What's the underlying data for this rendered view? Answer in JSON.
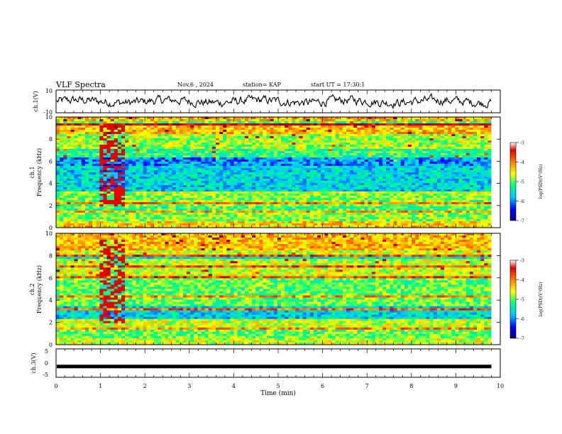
{
  "header": {
    "title": "VLF Spectra",
    "date": "Nov.6 , 2024",
    "station": "station= KAP",
    "start": "start UT = 17:30:1"
  },
  "chart_data": [
    {
      "panel": "ch1-waveform",
      "type": "line",
      "ylabel": "ch.1(V)",
      "ylim": [
        -10,
        10
      ],
      "yticks": [
        "10",
        "-10"
      ],
      "xlim": [
        0,
        10
      ],
      "x_end_min": 9.8,
      "approx_level_V": 0,
      "approx_amplitude_V": 4
    },
    {
      "panel": "ch1-spectrogram",
      "type": "heatmap",
      "ylabel": "ch.1 Frequency (kHz)",
      "ylim": [
        0,
        10
      ],
      "yticks": [
        "0",
        "2",
        "4",
        "6",
        "8",
        "10"
      ],
      "xlim": [
        0,
        10
      ],
      "x_end_min": 9.8,
      "bands_kHz": [
        {
          "from": 0.0,
          "to": 0.5,
          "level": -4.5
        },
        {
          "from": 0.5,
          "to": 1.3,
          "level": -5.0
        },
        {
          "from": 1.3,
          "to": 2.0,
          "level": -5.2
        },
        {
          "from": 2.0,
          "to": 3.0,
          "level": -5.0
        },
        {
          "from": 3.0,
          "to": 5.5,
          "level": -5.7
        },
        {
          "from": 5.5,
          "to": 6.3,
          "level": -6.0
        },
        {
          "from": 6.3,
          "to": 7.2,
          "level": -5.3
        },
        {
          "from": 7.2,
          "to": 8.5,
          "level": -4.9
        },
        {
          "from": 8.5,
          "to": 10.0,
          "level": -4.4
        }
      ],
      "burst_window_min": [
        0.95,
        1.55
      ],
      "burst_level": -3.6
    },
    {
      "panel": "ch2-spectrogram",
      "type": "heatmap",
      "ylabel": "ch.2 Frequency (kHz)",
      "ylim": [
        0,
        10
      ],
      "yticks": [
        "0",
        "2",
        "4",
        "6",
        "8",
        "10"
      ],
      "xlim": [
        0,
        10
      ],
      "x_end_min": 9.8,
      "bands_kHz": [
        {
          "from": 0.0,
          "to": 0.5,
          "level": -4.8
        },
        {
          "from": 0.5,
          "to": 1.5,
          "level": -5.1
        },
        {
          "from": 1.5,
          "to": 2.3,
          "level": -4.8
        },
        {
          "from": 2.3,
          "to": 3.0,
          "level": -5.7
        },
        {
          "from": 3.0,
          "to": 3.5,
          "level": -4.9
        },
        {
          "from": 3.5,
          "to": 6.0,
          "level": -5.1
        },
        {
          "from": 6.0,
          "to": 8.5,
          "level": -4.8
        },
        {
          "from": 8.5,
          "to": 10.0,
          "level": -4.4
        }
      ],
      "burst_window_min": [
        0.95,
        1.55
      ],
      "burst_level": -3.6
    },
    {
      "panel": "ch3",
      "type": "line",
      "ylabel": "ch.3(V)",
      "ylim": [
        -5,
        5
      ],
      "yticks": [
        "5",
        "0",
        "-5"
      ],
      "xlim": [
        0,
        10
      ],
      "x_end_min": 9.8,
      "level_V": -1.2,
      "xlabel": "Time (min)",
      "xticks": [
        "0",
        "1",
        "2",
        "3",
        "4",
        "5",
        "6",
        "7",
        "8",
        "9",
        "10"
      ]
    }
  ],
  "colorbars": [
    {
      "label": "log(PSD)(V²/Hz)",
      "range": [
        -7,
        -3
      ],
      "ticks": [
        "-3",
        "-4",
        "-5",
        "-6",
        "-7"
      ]
    },
    {
      "label": "log(PSD)(V²/Hz)",
      "range": [
        -7,
        -3
      ],
      "ticks": [
        "-3",
        "-4",
        "-5",
        "-6",
        "-7"
      ]
    }
  ],
  "colors": {
    "scale": [
      "#000080",
      "#0000ff",
      "#00c8ff",
      "#00ff80",
      "#ffff00",
      "#ff8000",
      "#e00000",
      "#8b0000"
    ]
  }
}
